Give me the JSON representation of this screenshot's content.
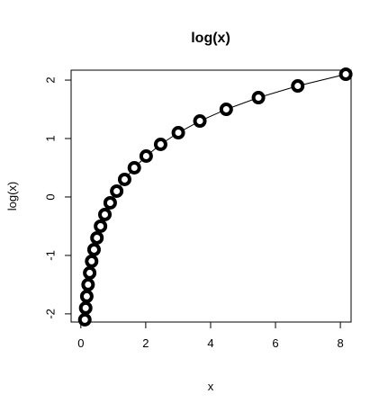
{
  "chart_data": {
    "type": "line",
    "title": "log(x)",
    "x_label": "x",
    "y_label": "log(x)",
    "x": [
      0.1225,
      0.1496,
      0.1827,
      0.2231,
      0.2725,
      0.3329,
      0.4066,
      0.4966,
      0.6065,
      0.7408,
      0.9048,
      1.1052,
      1.3499,
      1.6487,
      2.0138,
      2.4596,
      3.0042,
      3.6693,
      4.4817,
      5.4739,
      6.6859,
      8.1662
    ],
    "series": [
      {
        "name": "log(x)",
        "color": "#000000",
        "values": [
          -2.1,
          -1.9,
          -1.7,
          -1.5,
          -1.3,
          -1.1,
          -0.9,
          -0.7,
          -0.5,
          -0.3,
          -0.1,
          0.1,
          0.3,
          0.5,
          0.7,
          0.9,
          1.1,
          1.3,
          1.5,
          1.7,
          1.9,
          2.1
        ]
      }
    ],
    "xlim": [
      -0.3,
      8.33
    ],
    "ylim": [
      -2.14,
      2.17
    ],
    "xticks": [
      0,
      2,
      4,
      6,
      8
    ],
    "yticks": [
      -2,
      -1,
      0,
      1,
      2
    ]
  }
}
